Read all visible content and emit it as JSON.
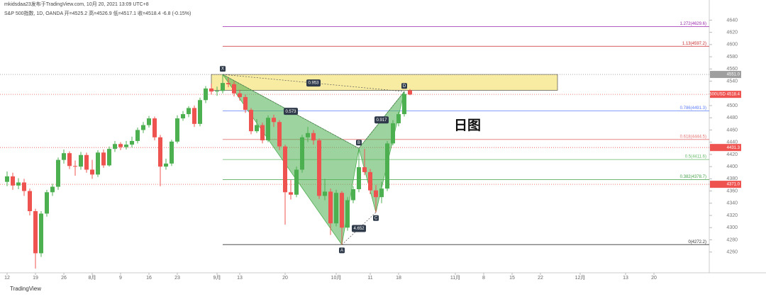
{
  "chart_data": {
    "type": "candlestick",
    "header": [
      "mkidsdaa23发布于TradingView.com, 10月 20, 2021 13:09 UTC+8",
      "S&P 500指数, 1D, OANDA  开=4525.2 高=4526.9 低=4517.1 收=4518.4 -6.8 (-0.15%)"
    ],
    "annotation": "日图",
    "footer": "TradingView",
    "up_color": "#4caf50",
    "down_color": "#ef5350",
    "open": [
      4375,
      4384,
      4369,
      4374,
      4360,
      4327,
      4258,
      4323,
      4358,
      4367,
      4411,
      4422,
      4401,
      4400,
      4419,
      4395,
      4387,
      4423,
      4402,
      4429,
      4437,
      4432,
      4436,
      4442,
      4460,
      4468,
      4479,
      4448,
      4400,
      4405,
      4441,
      4479,
      4486,
      4496,
      4470,
      4509,
      4528,
      4523,
      4524,
      4537,
      4535,
      4520,
      4514,
      4493,
      4458,
      4468,
      4443,
      4480,
      4473,
      4433,
      4358,
      4354,
      4395,
      4448,
      4455,
      4443,
      4352,
      4359,
      4307,
      4357,
      4300,
      4345,
      4363,
      4399,
      4391,
      4361,
      4350,
      4364,
      4438,
      4471,
      4486,
      4525
    ],
    "high": [
      4392,
      4390,
      4381,
      4380,
      4364,
      4331,
      4327,
      4362,
      4372,
      4415,
      4428,
      4425,
      4410,
      4424,
      4423,
      4411,
      4427,
      4428,
      4433,
      4442,
      4440,
      4442,
      4449,
      4464,
      4473,
      4483,
      4482,
      4452,
      4413,
      4444,
      4484,
      4491,
      4499,
      4500,
      4513,
      4532,
      4536,
      4531,
      4551,
      4545,
      4540,
      4526,
      4518,
      4496,
      4478,
      4472,
      4484,
      4485,
      4476,
      4436,
      4378,
      4400,
      4452,
      4465,
      4460,
      4446,
      4380,
      4364,
      4362,
      4360,
      4350,
      4368,
      4430,
      4429,
      4396,
      4370,
      4375,
      4442,
      4476,
      4490,
      4523,
      4527
    ],
    "low": [
      4368,
      4362,
      4363,
      4352,
      4320,
      4233,
      4252,
      4318,
      4352,
      4362,
      4405,
      4396,
      4385,
      4395,
      4390,
      4380,
      4383,
      4398,
      4400,
      4424,
      4427,
      4428,
      4431,
      4438,
      4455,
      4464,
      4443,
      4368,
      4395,
      4401,
      4438,
      4475,
      4481,
      4465,
      4466,
      4504,
      4518,
      4516,
      4520,
      4530,
      4515,
      4508,
      4488,
      4453,
      4455,
      4438,
      4440,
      4465,
      4427,
      4305,
      4346,
      4350,
      4390,
      4440,
      4436,
      4347,
      4345,
      4288,
      4302,
      4272,
      4295,
      4340,
      4358,
      4386,
      4355,
      4325,
      4340,
      4360,
      4435,
      4466,
      4482,
      4517
    ],
    "close": [
      4384,
      4369,
      4374,
      4360,
      4327,
      4258,
      4323,
      4358,
      4367,
      4411,
      4422,
      4401,
      4400,
      4419,
      4395,
      4387,
      4423,
      4402,
      4429,
      4437,
      4432,
      4436,
      4442,
      4460,
      4468,
      4479,
      4448,
      4400,
      4405,
      4441,
      4479,
      4486,
      4496,
      4470,
      4509,
      4528,
      4523,
      4524,
      4537,
      4535,
      4520,
      4514,
      4493,
      4458,
      4468,
      4443,
      4480,
      4473,
      4433,
      4358,
      4354,
      4395,
      4448,
      4455,
      4443,
      4352,
      4359,
      4307,
      4357,
      4300,
      4345,
      4363,
      4399,
      4391,
      4361,
      4350,
      4364,
      4438,
      4471,
      4486,
      4519,
      4518
    ],
    "xlim": [
      -1.25,
      123.75
    ],
    "xticks": [
      {
        "value": 0,
        "label": "12"
      },
      {
        "value": 5,
        "label": "19"
      },
      {
        "value": 10,
        "label": "26"
      },
      {
        "value": 15,
        "label": "8月"
      },
      {
        "value": 20,
        "label": "9"
      },
      {
        "value": 25,
        "label": "16"
      },
      {
        "value": 30,
        "label": "23"
      },
      {
        "value": 37,
        "label": "9月"
      },
      {
        "value": 41,
        "label": "13"
      },
      {
        "value": 49,
        "label": "20"
      },
      {
        "value": 58,
        "label": "10月"
      },
      {
        "value": 64,
        "label": "11"
      },
      {
        "value": 69,
        "label": "18"
      },
      {
        "value": 79,
        "label": "11月"
      },
      {
        "value": 84,
        "label": "8"
      },
      {
        "value": 89,
        "label": "15"
      },
      {
        "value": 94,
        "label": "22"
      },
      {
        "value": 101,
        "label": "12月"
      },
      {
        "value": 109,
        "label": "13"
      },
      {
        "value": 114,
        "label": "20"
      }
    ],
    "ylim": [
      4226,
      4673
    ],
    "yticks": [
      4260,
      4280,
      4300,
      4320,
      4340,
      4360,
      4380,
      4400,
      4420,
      4440,
      4460,
      4480,
      4500,
      4520,
      4540,
      4560,
      4580,
      4600,
      4620,
      4640
    ],
    "zone": {
      "top": 4551,
      "bottom": 4525,
      "color": "#f5e27a"
    },
    "levels": [
      {
        "label": "1.272(4629.6)",
        "value": 4629.6,
        "color": "#9c27b0"
      },
      {
        "label": "1.13(4597.2)",
        "value": 4597.2,
        "color": "#c62828"
      },
      {
        "label": "0.786(4491.3)",
        "value": 4491.3,
        "color": "#5c7cfa"
      },
      {
        "label": "0.618(4444.5)",
        "value": 4444.5,
        "color": "#e57373"
      },
      {
        "label": "0.5(4411.6)",
        "value": 4411.6,
        "color": "#66bb6a"
      },
      {
        "label": "0.382(4378.7)",
        "value": 4378.7,
        "color": "#43a047"
      },
      {
        "label": "0(4272.2)",
        "value": 4272.2,
        "color": "#333333"
      }
    ],
    "price_tags": [
      {
        "label": "4551.0",
        "value": 4551.0,
        "color": "#9e9e9e"
      },
      {
        "label": "SPX500USD 4518.4",
        "value": 4518.4,
        "color": "#ef5350"
      },
      {
        "label": "4431.3",
        "value": 4431.3,
        "color": "#ef5350"
      },
      {
        "label": "4371.0",
        "value": 4371.0,
        "color": "#ef5350"
      }
    ],
    "pattern": {
      "color": "#4caf50",
      "points": [
        {
          "label": "X",
          "at": 38,
          "price": 4551
        },
        {
          "label": "A",
          "at": 59,
          "price": 4272
        },
        {
          "label": "B",
          "at": 62,
          "price": 4430
        },
        {
          "label": "C",
          "at": 65,
          "price": 4325
        },
        {
          "label": "D",
          "at": 70,
          "price": 4523
        }
      ],
      "ratios": [
        {
          "label": "0.953",
          "from": "X",
          "to": "D"
        },
        {
          "label": "0.573",
          "from": "X",
          "to": "B"
        },
        {
          "label": "0.917",
          "from": "B",
          "to": "D"
        },
        {
          "label": "4.652",
          "from": "A",
          "to": "C"
        }
      ]
    }
  }
}
